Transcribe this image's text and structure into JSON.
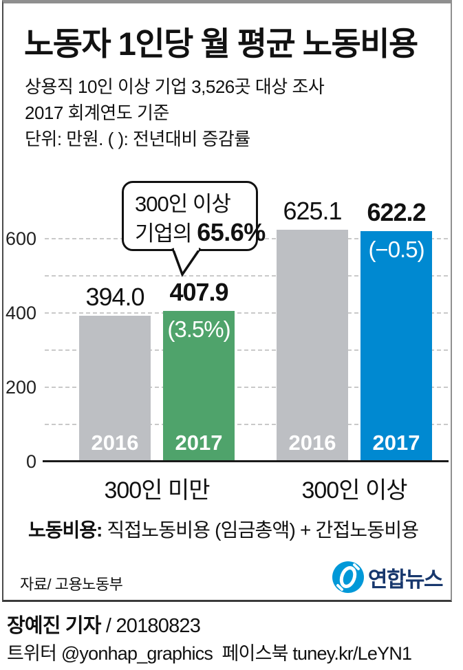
{
  "header": {
    "title": "노동자 1인당 월 평균 노동비용",
    "subtitle_line1": "상용직 10인 이상 기업 3,526곳 대상 조사",
    "subtitle_line2": "2017 회계연도 기준",
    "subtitle_line3": "단위: 만원. ( ): 전년대비 증감률"
  },
  "chart_data": {
    "type": "bar",
    "title": "노동자 1인당 월 평균 노동비용",
    "unit": "만원",
    "categories": [
      "300인 미만",
      "300인 이상"
    ],
    "series": [
      {
        "name": "2016",
        "values": [
          394.0,
          625.1
        ],
        "color": "#bdbfc3"
      },
      {
        "name": "2017",
        "values": [
          407.9,
          622.2
        ],
        "colors": [
          "#4fa36b",
          "#0089d1"
        ]
      }
    ],
    "value_labels": {
      "s2016": [
        "394.0",
        "625.1"
      ],
      "s2017": [
        "407.9",
        "622.2"
      ]
    },
    "change_labels": [
      "(3.5%)",
      "(−0.5)"
    ],
    "annotation": {
      "line1": "300인 이상",
      "line2_prefix": "기업의 ",
      "line2_bold": "65.6%"
    },
    "y_tick_labels": [
      "0",
      "200",
      "400",
      "600"
    ],
    "ylim": [
      0,
      650
    ],
    "grid": "dashed horizontal lines every 100",
    "legend_position": "none (years labeled inside bars)"
  },
  "footnote": {
    "bold": "노동비용:",
    "text": " 직접노동비용 (임금총액) + 간접노동비용"
  },
  "source": "자료/ 고용노동부",
  "logo": {
    "brand": "연합뉴스"
  },
  "byline": {
    "bold": "장예진 기자",
    "rest": " / 20180823"
  },
  "footer": "트위터 @yonhap_graphics  페이스북 tuney.kr/LeYN1",
  "colors": {
    "bar_2016": "#bdbfc3",
    "bar_2017_under300": "#4fa36b",
    "bar_2017_over300": "#0089d1",
    "logo_blue": "#0098d8",
    "logo_navy": "#17376d",
    "gridline": "#c9c9c9"
  }
}
